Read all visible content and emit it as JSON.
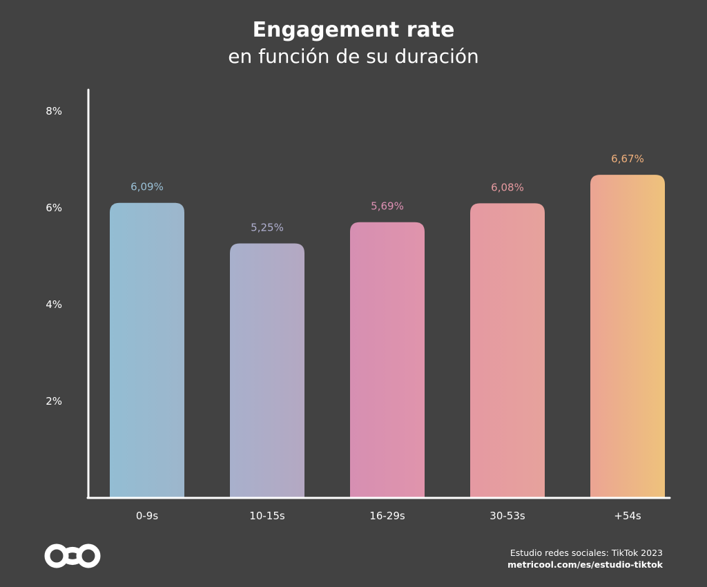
{
  "title": "Engagement rate",
  "subtitle": "en función de su duración",
  "chart_data": {
    "type": "bar",
    "categories": [
      "0-9s",
      "10-15s",
      "16-29s",
      "30-53s",
      "+54s"
    ],
    "values": [
      6.09,
      5.25,
      5.69,
      6.08,
      6.67
    ],
    "data_labels": [
      "6,09%",
      "5,25%",
      "5,69%",
      "6,08%",
      "6,67%"
    ],
    "bar_colors": [
      [
        "#93bdd3",
        "#9db6cc"
      ],
      [
        "#a8b0cc",
        "#b4a8c2"
      ],
      [
        "#d68fb2",
        "#e094ac"
      ],
      [
        "#e599a2",
        "#e6a29c"
      ],
      [
        "#eba494",
        "#eec27c"
      ]
    ],
    "label_colors": [
      "#9ac0d6",
      "#b0b0d0",
      "#de90b4",
      "#e69aa0",
      "#f0b07c"
    ],
    "y_ticks": [
      2,
      4,
      6,
      8
    ],
    "y_tick_labels": [
      "2%",
      "4%",
      "6%",
      "8%"
    ],
    "ylim": [
      0,
      8.7
    ],
    "grid": false,
    "axis_color": "#ffffff"
  },
  "footer": {
    "source_line": "Estudio redes sociales: TikTok 2023",
    "source_url": "metricool.com/es/estudio-tiktok"
  }
}
